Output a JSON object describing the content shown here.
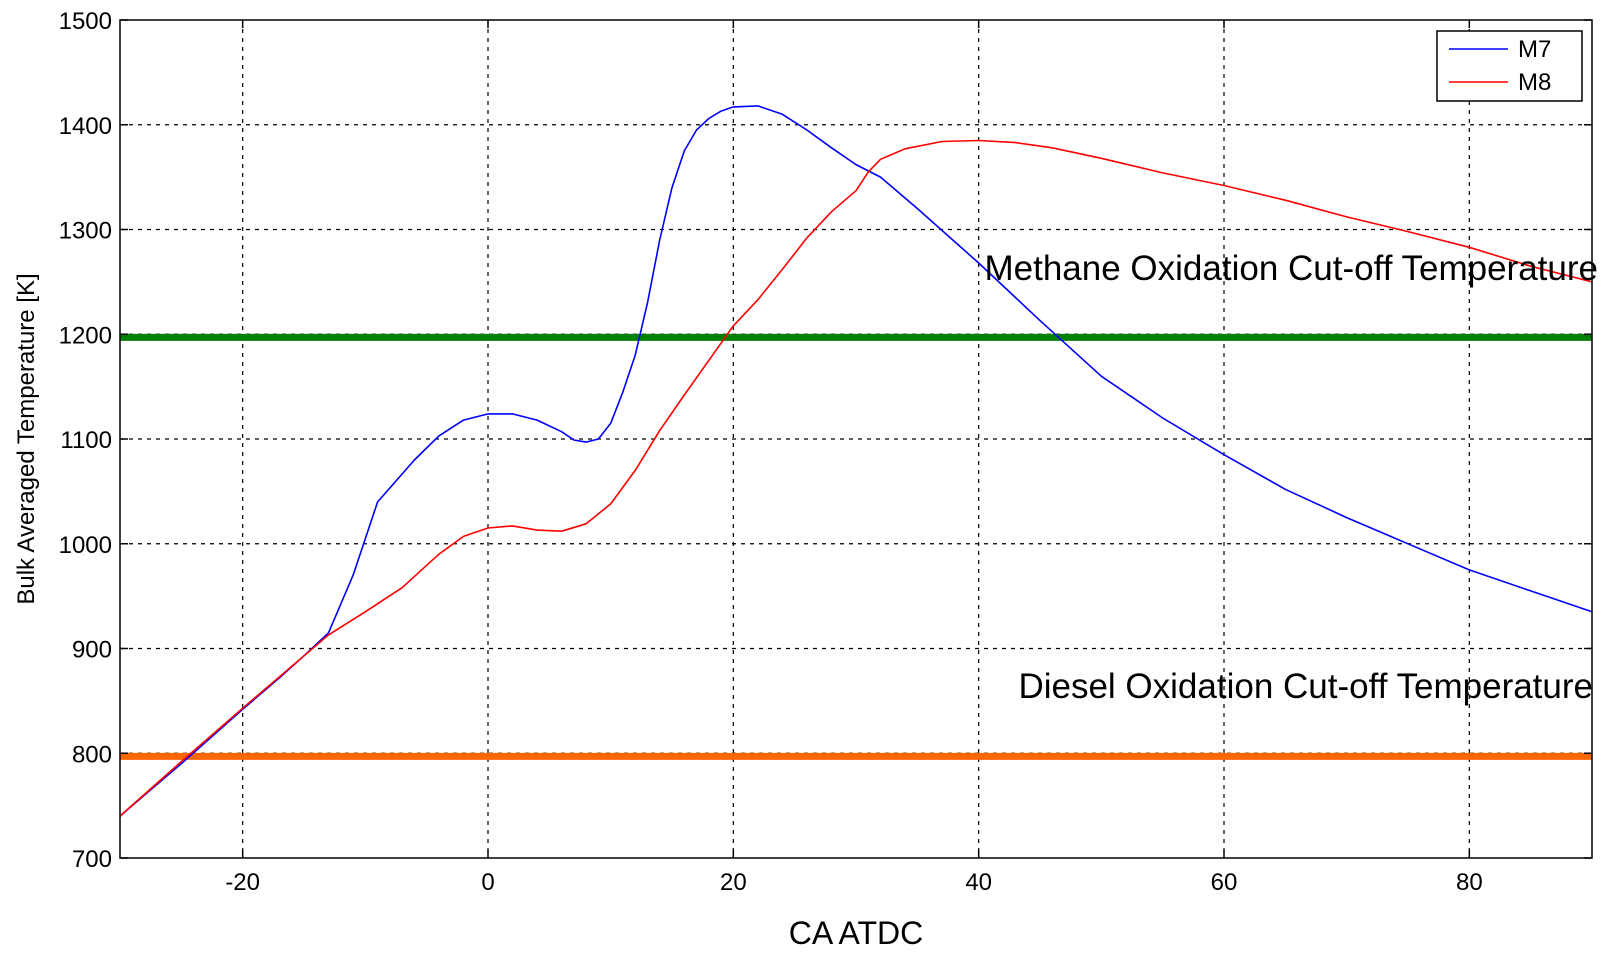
{
  "chart_data": {
    "type": "line",
    "title": "",
    "xlabel": "CA ATDC",
    "ylabel": "Bulk Averaged Temperature [K]",
    "xlim": [
      -30,
      90
    ],
    "ylim": [
      700,
      1500
    ],
    "xticks": [
      -20,
      0,
      20,
      40,
      60,
      80
    ],
    "yticks": [
      700,
      800,
      900,
      1000,
      1100,
      1200,
      1300,
      1400,
      1500
    ],
    "grid": true,
    "legend_position": "top-right",
    "series": [
      {
        "name": "M7",
        "color": "#0000ff",
        "points": [
          [
            -30,
            740
          ],
          [
            -25,
            790
          ],
          [
            -20,
            842
          ],
          [
            -17,
            872
          ],
          [
            -15,
            893
          ],
          [
            -13,
            915
          ],
          [
            -11,
            970
          ],
          [
            -9,
            1040
          ],
          [
            -6,
            1080
          ],
          [
            -4,
            1103
          ],
          [
            -2,
            1118
          ],
          [
            0,
            1124
          ],
          [
            2,
            1124
          ],
          [
            4,
            1118
          ],
          [
            6,
            1107
          ],
          [
            7,
            1099
          ],
          [
            8,
            1097
          ],
          [
            9,
            1100
          ],
          [
            10,
            1115
          ],
          [
            11,
            1145
          ],
          [
            12,
            1180
          ],
          [
            13,
            1230
          ],
          [
            14,
            1290
          ],
          [
            15,
            1340
          ],
          [
            16,
            1375
          ],
          [
            17,
            1395
          ],
          [
            18,
            1406
          ],
          [
            19,
            1413
          ],
          [
            20,
            1417
          ],
          [
            22,
            1418
          ],
          [
            24,
            1410
          ],
          [
            26,
            1395
          ],
          [
            28,
            1378
          ],
          [
            30,
            1362
          ],
          [
            32,
            1350
          ],
          [
            35,
            1320
          ],
          [
            40,
            1268
          ],
          [
            45,
            1213
          ],
          [
            50,
            1160
          ],
          [
            55,
            1120
          ],
          [
            60,
            1085
          ],
          [
            65,
            1052
          ],
          [
            70,
            1025
          ],
          [
            75,
            1000
          ],
          [
            80,
            975
          ],
          [
            85,
            955
          ],
          [
            90,
            935
          ]
        ]
      },
      {
        "name": "M8",
        "color": "#ff0000",
        "points": [
          [
            -30,
            740
          ],
          [
            -25,
            792
          ],
          [
            -20,
            843
          ],
          [
            -15,
            893
          ],
          [
            -13,
            913
          ],
          [
            -10,
            935
          ],
          [
            -7,
            958
          ],
          [
            -4,
            990
          ],
          [
            -2,
            1007
          ],
          [
            0,
            1015
          ],
          [
            2,
            1017
          ],
          [
            4,
            1013
          ],
          [
            6,
            1012
          ],
          [
            8,
            1019
          ],
          [
            10,
            1038
          ],
          [
            12,
            1070
          ],
          [
            14,
            1108
          ],
          [
            16,
            1142
          ],
          [
            18,
            1175
          ],
          [
            20,
            1208
          ],
          [
            22,
            1233
          ],
          [
            24,
            1262
          ],
          [
            26,
            1292
          ],
          [
            28,
            1317
          ],
          [
            30,
            1337
          ],
          [
            31,
            1355
          ],
          [
            32,
            1367
          ],
          [
            34,
            1377
          ],
          [
            37,
            1384
          ],
          [
            40,
            1385
          ],
          [
            43,
            1383
          ],
          [
            46,
            1378
          ],
          [
            50,
            1368
          ],
          [
            55,
            1354
          ],
          [
            60,
            1342
          ],
          [
            65,
            1328
          ],
          [
            70,
            1312
          ],
          [
            75,
            1298
          ],
          [
            80,
            1283
          ],
          [
            85,
            1265
          ],
          [
            90,
            1250
          ]
        ]
      }
    ],
    "reference_lines": [
      {
        "y": 1197,
        "color": "#008000",
        "label": "Methane Oxidation Cut-off Temperature"
      },
      {
        "y": 797,
        "color": "#ff6600",
        "label": "Diesel Oxidation Cut-off Temperature"
      }
    ]
  }
}
